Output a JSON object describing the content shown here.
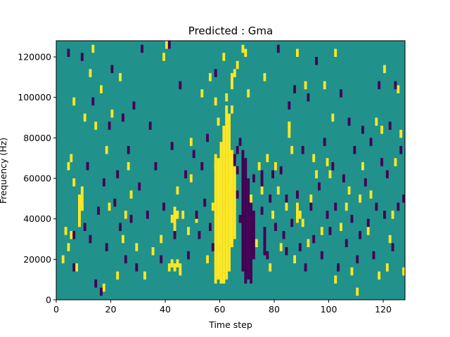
{
  "chart_data": {
    "type": "heatmap",
    "title": "Predicted : Gma",
    "xlabel": "Time step",
    "ylabel": "Frequency (Hz)",
    "xlim": [
      0,
      128
    ],
    "ylim": [
      0,
      128000
    ],
    "x_ticks": [
      0,
      20,
      40,
      60,
      80,
      100,
      120
    ],
    "y_ticks": [
      0,
      20000,
      40000,
      60000,
      80000,
      100000,
      120000
    ],
    "x_tick_labels": [
      "0",
      "20",
      "40",
      "60",
      "80",
      "100",
      "120"
    ],
    "y_tick_labels": [
      "0",
      "20000",
      "40000",
      "60000",
      "80000",
      "100000",
      "120000"
    ],
    "grid": false,
    "colormap": "viridis",
    "colors": {
      "background": "#21918c",
      "high": "#fde725",
      "low": "#440154"
    },
    "cell_height": 4000,
    "cells": [
      [
        2,
        18000,
        "high"
      ],
      [
        3,
        32000,
        "high"
      ],
      [
        4,
        24000,
        "high"
      ],
      [
        4,
        64000,
        "high"
      ],
      [
        5,
        30000,
        "high"
      ],
      [
        5,
        68000,
        "high"
      ],
      [
        6,
        56000,
        "high"
      ],
      [
        6,
        96000,
        "high"
      ],
      [
        7,
        14000,
        "high"
      ],
      [
        8,
        40000,
        "high"
      ],
      [
        8,
        48000,
        "high"
      ],
      [
        9,
        44000,
        "high"
      ],
      [
        9,
        52000,
        "high"
      ],
      [
        10,
        88000,
        "high"
      ],
      [
        12,
        110000,
        "high"
      ],
      [
        13,
        122000,
        "high"
      ],
      [
        14,
        84000,
        "high"
      ],
      [
        16,
        102000,
        "high"
      ],
      [
        17,
        4000,
        "high"
      ],
      [
        18,
        72000,
        "high"
      ],
      [
        19,
        44000,
        "high"
      ],
      [
        20,
        90000,
        "high"
      ],
      [
        22,
        10000,
        "high"
      ],
      [
        23,
        108000,
        "high"
      ],
      [
        24,
        28000,
        "high"
      ],
      [
        25,
        40000,
        "high"
      ],
      [
        26,
        64000,
        "high"
      ],
      [
        27,
        50000,
        "high"
      ],
      [
        29,
        24000,
        "high"
      ],
      [
        32,
        10000,
        "high"
      ],
      [
        35,
        22000,
        "high"
      ],
      [
        38,
        28000,
        "high"
      ],
      [
        39,
        118000,
        "high"
      ],
      [
        40,
        124000,
        "high"
      ],
      [
        41,
        14000,
        "high"
      ],
      [
        42,
        16000,
        "high"
      ],
      [
        42,
        38000,
        "high"
      ],
      [
        43,
        14000,
        "high"
      ],
      [
        44,
        40000,
        "high"
      ],
      [
        44,
        52000,
        "high"
      ],
      [
        46,
        40000,
        "high"
      ],
      [
        48,
        32000,
        "high"
      ],
      [
        49,
        58000,
        "high"
      ],
      [
        49,
        76000,
        "high"
      ],
      [
        51,
        38000,
        "high"
      ],
      [
        53,
        100000,
        "high"
      ],
      [
        55,
        18000,
        "high"
      ],
      [
        56,
        108000,
        "high"
      ],
      [
        57,
        44000,
        "high"
      ],
      [
        58,
        96000,
        "high"
      ],
      [
        59,
        86000,
        "high"
      ],
      [
        61,
        118000,
        "high"
      ],
      [
        62,
        98000,
        "high"
      ],
      [
        63,
        54000,
        "high"
      ],
      [
        64,
        92000,
        "high"
      ],
      [
        65,
        110000,
        "high"
      ],
      [
        66,
        114000,
        "high"
      ],
      [
        68,
        122000,
        "high"
      ],
      [
        69,
        120000,
        "high"
      ],
      [
        70,
        100000,
        "high"
      ],
      [
        71,
        48000,
        "high"
      ],
      [
        73,
        26000,
        "high"
      ],
      [
        74,
        64000,
        "high"
      ],
      [
        75,
        52000,
        "high"
      ],
      [
        76,
        108000,
        "high"
      ],
      [
        77,
        68000,
        "high"
      ],
      [
        78,
        14000,
        "high"
      ],
      [
        79,
        40000,
        "high"
      ],
      [
        80,
        64000,
        "high"
      ],
      [
        81,
        52000,
        "high"
      ],
      [
        82,
        24000,
        "high"
      ],
      [
        84,
        44000,
        "high"
      ],
      [
        85,
        84000,
        "high"
      ],
      [
        86,
        72000,
        "high"
      ],
      [
        87,
        18000,
        "high"
      ],
      [
        88,
        120000,
        "high"
      ],
      [
        90,
        36000,
        "high"
      ],
      [
        91,
        104000,
        "high"
      ],
      [
        92,
        26000,
        "high"
      ],
      [
        93,
        48000,
        "high"
      ],
      [
        94,
        68000,
        "high"
      ],
      [
        95,
        60000,
        "high"
      ],
      [
        97,
        32000,
        "high"
      ],
      [
        98,
        104000,
        "high"
      ],
      [
        99,
        66000,
        "high"
      ],
      [
        100,
        60000,
        "high"
      ],
      [
        101,
        88000,
        "high"
      ],
      [
        102,
        8000,
        "high"
      ],
      [
        102,
        120000,
        "high"
      ],
      [
        104,
        34000,
        "high"
      ],
      [
        106,
        44000,
        "high"
      ],
      [
        107,
        52000,
        "high"
      ],
      [
        108,
        12000,
        "high"
      ],
      [
        110,
        2000,
        "high"
      ],
      [
        111,
        48000,
        "high"
      ],
      [
        112,
        64000,
        "high"
      ],
      [
        114,
        32000,
        "high"
      ],
      [
        115,
        50000,
        "high"
      ],
      [
        117,
        86000,
        "high"
      ],
      [
        118,
        10000,
        "high"
      ],
      [
        119,
        82000,
        "high"
      ],
      [
        120,
        112000,
        "high"
      ],
      [
        121,
        14000,
        "high"
      ],
      [
        122,
        28000,
        "high"
      ],
      [
        123,
        40000,
        "high"
      ],
      [
        124,
        66000,
        "high"
      ],
      [
        125,
        102000,
        "high"
      ],
      [
        126,
        80000,
        "high"
      ],
      [
        127,
        12000,
        "high"
      ],
      [
        4,
        120000,
        "low"
      ],
      [
        6,
        30000,
        "low"
      ],
      [
        6,
        14000,
        "low"
      ],
      [
        9,
        118000,
        "low"
      ],
      [
        10,
        34000,
        "low"
      ],
      [
        11,
        64000,
        "low"
      ],
      [
        12,
        28000,
        "low"
      ],
      [
        13,
        96000,
        "low"
      ],
      [
        14,
        6000,
        "low"
      ],
      [
        15,
        42000,
        "low"
      ],
      [
        16,
        2000,
        "low"
      ],
      [
        17,
        56000,
        "low"
      ],
      [
        18,
        24000,
        "low"
      ],
      [
        19,
        84000,
        "low"
      ],
      [
        20,
        112000,
        "low"
      ],
      [
        21,
        46000,
        "low"
      ],
      [
        22,
        60000,
        "low"
      ],
      [
        23,
        34000,
        "low"
      ],
      [
        24,
        88000,
        "low"
      ],
      [
        25,
        18000,
        "low"
      ],
      [
        26,
        72000,
        "low"
      ],
      [
        27,
        38000,
        "low"
      ],
      [
        28,
        94000,
        "low"
      ],
      [
        29,
        14000,
        "low"
      ],
      [
        30,
        54000,
        "low"
      ],
      [
        31,
        122000,
        "low"
      ],
      [
        33,
        40000,
        "low"
      ],
      [
        34,
        84000,
        "low"
      ],
      [
        36,
        64000,
        "low"
      ],
      [
        38,
        18000,
        "low"
      ],
      [
        39,
        44000,
        "low"
      ],
      [
        41,
        124000,
        "low"
      ],
      [
        42,
        74000,
        "low"
      ],
      [
        43,
        30000,
        "low"
      ],
      [
        45,
        104000,
        "low"
      ],
      [
        47,
        60000,
        "low"
      ],
      [
        48,
        20000,
        "low"
      ],
      [
        50,
        70000,
        "low"
      ],
      [
        51,
        40000,
        "low"
      ],
      [
        52,
        30000,
        "low"
      ],
      [
        53,
        64000,
        "low"
      ],
      [
        54,
        46000,
        "low"
      ],
      [
        55,
        78000,
        "low"
      ],
      [
        56,
        34000,
        "low"
      ],
      [
        57,
        24000,
        "low"
      ],
      [
        58,
        110000,
        "low"
      ],
      [
        66,
        62000,
        "low"
      ],
      [
        66,
        50000,
        "low"
      ],
      [
        67,
        76000,
        "low"
      ],
      [
        67,
        38000,
        "low"
      ],
      [
        68,
        24000,
        "low"
      ],
      [
        69,
        14000,
        "low"
      ],
      [
        72,
        58000,
        "low"
      ],
      [
        75,
        42000,
        "low"
      ],
      [
        76,
        28000,
        "low"
      ],
      [
        77,
        20000,
        "low"
      ],
      [
        78,
        48000,
        "low"
      ],
      [
        79,
        60000,
        "low"
      ],
      [
        80,
        34000,
        "low"
      ],
      [
        81,
        122000,
        "low"
      ],
      [
        82,
        62000,
        "low"
      ],
      [
        83,
        30000,
        "low"
      ],
      [
        84,
        22000,
        "low"
      ],
      [
        85,
        94000,
        "low"
      ],
      [
        86,
        36000,
        "low"
      ],
      [
        87,
        102000,
        "low"
      ],
      [
        88,
        50000,
        "low"
      ],
      [
        89,
        24000,
        "low"
      ],
      [
        90,
        72000,
        "low"
      ],
      [
        91,
        14000,
        "low"
      ],
      [
        92,
        98000,
        "low"
      ],
      [
        93,
        44000,
        "low"
      ],
      [
        94,
        28000,
        "low"
      ],
      [
        95,
        116000,
        "low"
      ],
      [
        96,
        54000,
        "low"
      ],
      [
        97,
        20000,
        "low"
      ],
      [
        98,
        76000,
        "low"
      ],
      [
        99,
        40000,
        "low"
      ],
      [
        100,
        32000,
        "low"
      ],
      [
        101,
        64000,
        "low"
      ],
      [
        102,
        44000,
        "low"
      ],
      [
        103,
        14000,
        "low"
      ],
      [
        104,
        100000,
        "low"
      ],
      [
        105,
        58000,
        "low"
      ],
      [
        106,
        26000,
        "low"
      ],
      [
        107,
        86000,
        "low"
      ],
      [
        108,
        38000,
        "low"
      ],
      [
        109,
        72000,
        "low"
      ],
      [
        110,
        18000,
        "low"
      ],
      [
        111,
        30000,
        "low"
      ],
      [
        112,
        82000,
        "low"
      ],
      [
        113,
        56000,
        "low"
      ],
      [
        114,
        36000,
        "low"
      ],
      [
        115,
        76000,
        "low"
      ],
      [
        116,
        20000,
        "low"
      ],
      [
        117,
        44000,
        "low"
      ],
      [
        118,
        104000,
        "low"
      ],
      [
        119,
        66000,
        "low"
      ],
      [
        120,
        40000,
        "low"
      ],
      [
        121,
        60000,
        "low"
      ],
      [
        122,
        84000,
        "low"
      ],
      [
        123,
        24000,
        "low"
      ],
      [
        124,
        104000,
        "low"
      ],
      [
        125,
        44000,
        "low"
      ],
      [
        126,
        72000,
        "low"
      ],
      [
        127,
        48000,
        "low"
      ]
    ],
    "blocks": [
      [
        58,
        8000,
        68000,
        "high"
      ],
      [
        59,
        10000,
        70000,
        "high"
      ],
      [
        60,
        8000,
        78000,
        "high"
      ],
      [
        61,
        8000,
        86000,
        "high"
      ],
      [
        62,
        10000,
        96000,
        "high"
      ],
      [
        63,
        14000,
        92000,
        "high"
      ],
      [
        64,
        26000,
        74000,
        "high"
      ],
      [
        65,
        30000,
        70000,
        "high"
      ],
      [
        68,
        14000,
        74000,
        "low"
      ],
      [
        69,
        8000,
        70000,
        "low"
      ],
      [
        70,
        10000,
        60000,
        "low"
      ],
      [
        71,
        8000,
        50000,
        "low"
      ],
      [
        72,
        20000,
        44000,
        "low"
      ],
      [
        8,
        36000,
        52000,
        "high"
      ],
      [
        9,
        44000,
        52000,
        "high"
      ],
      [
        43,
        34000,
        46000,
        "high"
      ],
      [
        44,
        16000,
        20000,
        "high"
      ],
      [
        45,
        12000,
        18000,
        "high"
      ],
      [
        58,
        64000,
        72000,
        "high"
      ],
      [
        64,
        104000,
        112000,
        "high"
      ],
      [
        88,
        38000,
        48000,
        "high"
      ],
      [
        89,
        40000,
        44000,
        "high"
      ],
      [
        85,
        80000,
        88000,
        "high"
      ],
      [
        66,
        72000,
        76000,
        "low"
      ],
      [
        65,
        66000,
        72000,
        "low"
      ],
      [
        75,
        52000,
        64000,
        "low"
      ],
      [
        76,
        22000,
        36000,
        "low"
      ],
      [
        84,
        44000,
        52000,
        "low"
      ]
    ]
  }
}
